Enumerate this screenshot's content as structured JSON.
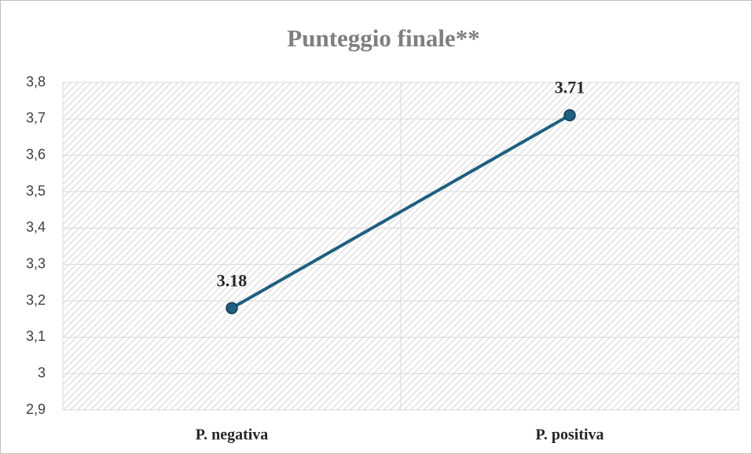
{
  "chart_data": {
    "type": "line",
    "title": "Punteggio finale**",
    "categories": [
      "P. negativa",
      "P. positiva"
    ],
    "series": [
      {
        "name": "Punteggio finale",
        "color": "#1f5f7f",
        "values": [
          3.18,
          3.71
        ]
      }
    ],
    "ylim": [
      2.9,
      3.8
    ],
    "yticks": [
      {
        "value": 2.9,
        "label": "2,9"
      },
      3,
      {
        "value": 3.1,
        "label": "3,1"
      },
      {
        "value": 3.2,
        "label": "3,2"
      },
      {
        "value": 3.3,
        "label": "3,3"
      },
      {
        "value": 3.4,
        "label": "3,4"
      },
      {
        "value": 3.5,
        "label": "3,5"
      },
      {
        "value": 3.6,
        "label": "3,6"
      },
      {
        "value": 3.7,
        "label": "3,7"
      },
      {
        "value": 3.8,
        "label": "3,8"
      }
    ],
    "grid": true
  }
}
